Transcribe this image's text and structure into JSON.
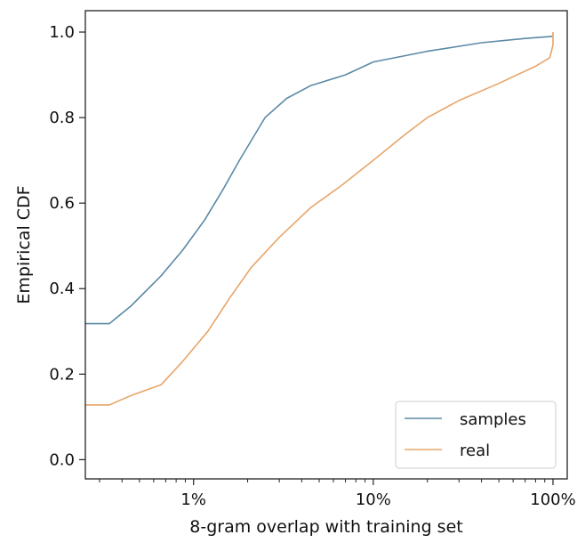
{
  "chart_data": {
    "type": "line",
    "xlabel": "8-gram overlap with training set",
    "ylabel": "Empirical CDF",
    "x_scale": "log",
    "xlim": [
      0.0025,
      1.2
    ],
    "ylim": [
      -0.045,
      1.05
    ],
    "x_ticks": [
      {
        "value": 0.01,
        "label": "1%"
      },
      {
        "value": 0.1,
        "label": "10%"
      },
      {
        "value": 1.0,
        "label": "100%"
      }
    ],
    "y_ticks": [
      {
        "value": 0.0,
        "label": "0.0"
      },
      {
        "value": 0.2,
        "label": "0.2"
      },
      {
        "value": 0.4,
        "label": "0.4"
      },
      {
        "value": 0.6,
        "label": "0.6"
      },
      {
        "value": 0.8,
        "label": "0.8"
      },
      {
        "value": 1.0,
        "label": "1.0"
      }
    ],
    "grid": false,
    "legend_position": "lower-right",
    "series": [
      {
        "name": "samples",
        "color": "#5b8aa6",
        "points": [
          [
            0.0025,
            0.318
          ],
          [
            0.0034,
            0.318
          ],
          [
            0.0045,
            0.36
          ],
          [
            0.0066,
            0.43
          ],
          [
            0.0087,
            0.49
          ],
          [
            0.0115,
            0.56
          ],
          [
            0.0145,
            0.63
          ],
          [
            0.018,
            0.7
          ],
          [
            0.025,
            0.8
          ],
          [
            0.033,
            0.845
          ],
          [
            0.045,
            0.875
          ],
          [
            0.07,
            0.9
          ],
          [
            0.1,
            0.93
          ],
          [
            0.2,
            0.955
          ],
          [
            0.4,
            0.975
          ],
          [
            0.7,
            0.985
          ],
          [
            1.0,
            0.99
          ]
        ]
      },
      {
        "name": "real",
        "color": "#e8a56a",
        "points": [
          [
            0.0025,
            0.128
          ],
          [
            0.0034,
            0.128
          ],
          [
            0.0045,
            0.15
          ],
          [
            0.0066,
            0.175
          ],
          [
            0.0087,
            0.23
          ],
          [
            0.012,
            0.3
          ],
          [
            0.016,
            0.38
          ],
          [
            0.021,
            0.45
          ],
          [
            0.03,
            0.52
          ],
          [
            0.045,
            0.59
          ],
          [
            0.066,
            0.64
          ],
          [
            0.1,
            0.7
          ],
          [
            0.15,
            0.76
          ],
          [
            0.2,
            0.8
          ],
          [
            0.3,
            0.84
          ],
          [
            0.5,
            0.88
          ],
          [
            0.8,
            0.92
          ],
          [
            0.96,
            0.94
          ],
          [
            1.0,
            0.97
          ],
          [
            1.0,
            1.0
          ]
        ]
      }
    ]
  }
}
